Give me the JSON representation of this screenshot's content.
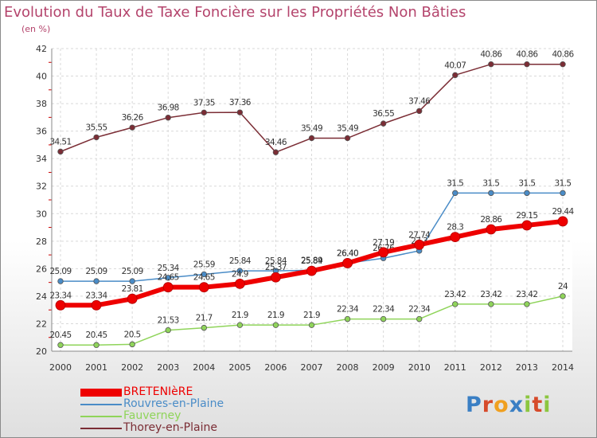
{
  "header": {
    "title": "Evolution du Taux de Taxe Foncière sur les Propriétés Non Bâties",
    "subtitle": "(en %)"
  },
  "logo": {
    "text": "Proxiti",
    "colors": [
      "#3a7fc4",
      "#d64a2a",
      "#f0a020",
      "#3a7fc4",
      "#8cc63f",
      "#d64a2a",
      "#8cc63f"
    ]
  },
  "chart_data": {
    "type": "line",
    "title": "Evolution du Taux de Taxe Foncière sur les Propriétés Non Bâties",
    "ylabel": "(en %)",
    "xlabel": "",
    "x": [
      "2000",
      "2001",
      "2002",
      "2003",
      "2004",
      "2005",
      "2006",
      "2007",
      "2008",
      "2009",
      "2010",
      "2011",
      "2012",
      "2013",
      "2014"
    ],
    "ylim": [
      20,
      42
    ],
    "yticks": [
      20,
      22,
      24,
      26,
      28,
      30,
      32,
      34,
      36,
      38,
      40,
      42
    ],
    "grid": true,
    "legend_position": "bottom-left",
    "series": [
      {
        "name": "Thorey-en-Plaine",
        "color": "#7b2d35",
        "emphasis": false,
        "values": [
          34.51,
          35.55,
          36.26,
          36.98,
          37.35,
          37.36,
          34.46,
          35.49,
          35.49,
          36.55,
          37.46,
          40.07,
          40.86,
          40.86,
          40.86
        ],
        "labels": [
          "34.51",
          "35.55",
          "36.26",
          "36.98",
          "37.35",
          "37.36",
          "34.46",
          "35.49",
          "35.49",
          "36.55",
          "37.46",
          "40.07",
          "40.86",
          "40.86",
          "40.86"
        ]
      },
      {
        "name": "Rouvres-en-Plaine",
        "color": "#4a8cc7",
        "emphasis": false,
        "values": [
          25.09,
          25.09,
          25.09,
          25.34,
          25.59,
          25.84,
          25.84,
          25.89,
          26.4,
          26.76,
          27.3,
          31.5,
          31.5,
          31.5,
          31.5
        ],
        "labels": [
          "25.09",
          "25.09",
          "25.09",
          "25.34",
          "25.59",
          "25.84",
          "25.84",
          "25.89",
          "26.40",
          "26.76",
          "27.3",
          "31.5",
          "31.5",
          "31.5",
          "31.5"
        ]
      },
      {
        "name": "Fauverney",
        "color": "#8fd45a",
        "emphasis": false,
        "values": [
          20.45,
          20.45,
          20.5,
          21.53,
          21.7,
          21.9,
          21.9,
          21.9,
          22.34,
          22.34,
          22.34,
          23.42,
          23.42,
          23.42,
          24
        ],
        "labels": [
          "20.45",
          "20.45",
          "20.5",
          "21.53",
          "21.7",
          "21.9",
          "21.9",
          "21.9",
          "22.34",
          "22.34",
          "22.34",
          "23.42",
          "23.42",
          "23.42",
          "24"
        ]
      },
      {
        "name": "BRETENIèRE",
        "color": "#ee0000",
        "emphasis": true,
        "values": [
          23.34,
          23.34,
          23.81,
          24.65,
          24.65,
          24.9,
          25.37,
          25.84,
          26.4,
          27.19,
          27.74,
          28.3,
          28.86,
          29.15,
          29.44
        ],
        "labels": [
          "23.34",
          "23.34",
          "23.81",
          "24.65",
          "24.65",
          "24.9",
          "25.37",
          "25.84",
          "26.40",
          "27.19",
          "27.74",
          "28.3",
          "28.86",
          "29.15",
          "29.44"
        ]
      }
    ]
  },
  "legend": [
    {
      "name": "BRETENIèRE",
      "color": "#ee0000",
      "thick": true
    },
    {
      "name": "Rouvres-en-Plaine",
      "color": "#4a8cc7",
      "thick": false
    },
    {
      "name": "Fauverney",
      "color": "#8fd45a",
      "thick": false
    },
    {
      "name": "Thorey-en-Plaine",
      "color": "#7b2d35",
      "thick": false
    }
  ]
}
